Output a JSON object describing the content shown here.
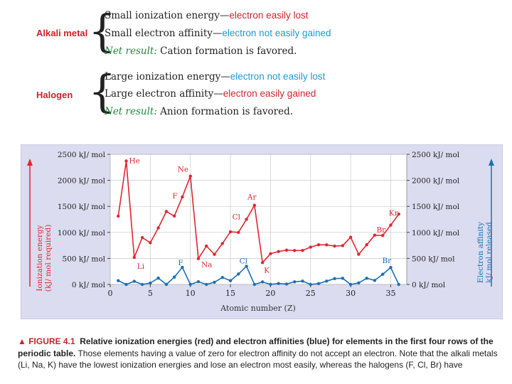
{
  "alkali": {
    "label": "Alkali metal",
    "line1_a": "Small ionization energy—",
    "line1_b": "electron easily lost",
    "line2_a": "Small electron affinity—",
    "line2_b": "electron not easily gained",
    "line3_a": "Net result:",
    "line3_b": " Cation formation is favored."
  },
  "halogen": {
    "label": "Halogen",
    "line1_a": "Large ionization energy—",
    "line1_b": "electron not easily lost",
    "line2_a": "Large electron affinity—",
    "line2_b": "electron easily gained",
    "line3_a": "Net result:",
    "line3_b": " Anion formation is favored."
  },
  "colors": {
    "ionization": "#e0262f",
    "affinity": "#1b6fb5",
    "panel": "#dcdcf0",
    "plot_bg": "#ffffff",
    "grid": "#c8c8c8",
    "label_red": "#c9242b",
    "note_green": "#1f8a3a"
  },
  "chart_data": {
    "type": "line",
    "title": "",
    "xlabel": "Atomic number (Z)",
    "ylabel_left": "Ionization energy (kJ/ mol required)",
    "ylabel_right": "Electron affinity kJ/ mol released",
    "x_ticks": [
      "0",
      "5",
      "10",
      "15",
      "20",
      "25",
      "30",
      "35"
    ],
    "y_ticks_left": [
      "0 kJ/ mol",
      "500 kJ/ mol",
      "1000 kJ/ mol",
      "1500 kJ/ mol",
      "2000 kJ/ mol",
      "2500 kJ/ mol"
    ],
    "y_ticks_right": [
      "0 kJ/ mol",
      "500 kJ/ mol",
      "1000 kJ/ mol",
      "1500 kJ/ mol",
      "2000 kJ/ mol",
      "2500 kJ/ mol"
    ],
    "xlim": [
      0,
      37
    ],
    "ylim": [
      0,
      2500
    ],
    "grid": true,
    "x": [
      1,
      2,
      3,
      4,
      5,
      6,
      7,
      8,
      9,
      10,
      11,
      12,
      13,
      14,
      15,
      16,
      17,
      18,
      19,
      20,
      21,
      22,
      23,
      24,
      25,
      26,
      27,
      28,
      29,
      30,
      31,
      32,
      33,
      34,
      35,
      36
    ],
    "series": [
      {
        "color": "#e0262f",
        "values": [
          1312,
          2372,
          520,
          900,
          801,
          1086,
          1402,
          1314,
          1681,
          2081,
          496,
          738,
          578,
          787,
          1012,
          1000,
          1251,
          1521,
          419,
          590,
          633,
          659,
          651,
          653,
          717,
          762,
          760,
          737,
          745,
          906,
          579,
          762,
          947,
          941,
          1140,
          1351
        ]
      },
      {
        "color": "#1b6fb5",
        "values": [
          73,
          0,
          60,
          0,
          27,
          122,
          0,
          141,
          328,
          0,
          53,
          0,
          42,
          134,
          72,
          200,
          349,
          0,
          48,
          2,
          18,
          8,
          51,
          64,
          0,
          16,
          64,
          112,
          118,
          0,
          29,
          119,
          78,
          195,
          325,
          0
        ]
      }
    ],
    "annotations": [
      {
        "text": "He",
        "x": 2,
        "y": 2372,
        "series": 0
      },
      {
        "text": "Ne",
        "x": 10,
        "y": 2081,
        "series": 0
      },
      {
        "text": "F",
        "x": 9,
        "y": 1681,
        "series": 0
      },
      {
        "text": "Ar",
        "x": 18,
        "y": 1521,
        "series": 0
      },
      {
        "text": "Cl",
        "x": 17,
        "y": 1251,
        "series": 0
      },
      {
        "text": "Kr",
        "x": 36,
        "y": 1351,
        "series": 0
      },
      {
        "text": "Br",
        "x": 35,
        "y": 1140,
        "series": 0
      },
      {
        "text": "Li",
        "x": 3,
        "y": 520,
        "series": 0
      },
      {
        "text": "Na",
        "x": 11,
        "y": 496,
        "series": 0
      },
      {
        "text": "K",
        "x": 19,
        "y": 419,
        "series": 0
      },
      {
        "text": "F",
        "x": 9,
        "y": 328,
        "series": 1
      },
      {
        "text": "Cl",
        "x": 17,
        "y": 349,
        "series": 1
      },
      {
        "text": "Br",
        "x": 35,
        "y": 325,
        "series": 1
      }
    ]
  },
  "caption": {
    "figure": "▲ FIGURE 4.1",
    "title": "Relative ionization energies (red) and electron affinities (blue) for elements in the first four rows of the periodic table.",
    "body": " Those elements having a value of zero for electron affinity do not accept an electron. Note that the alkali metals (Li, Na, K) have the lowest ionization energies and lose an electron most easily, whereas the halogens (F, Cl, Br) have"
  }
}
